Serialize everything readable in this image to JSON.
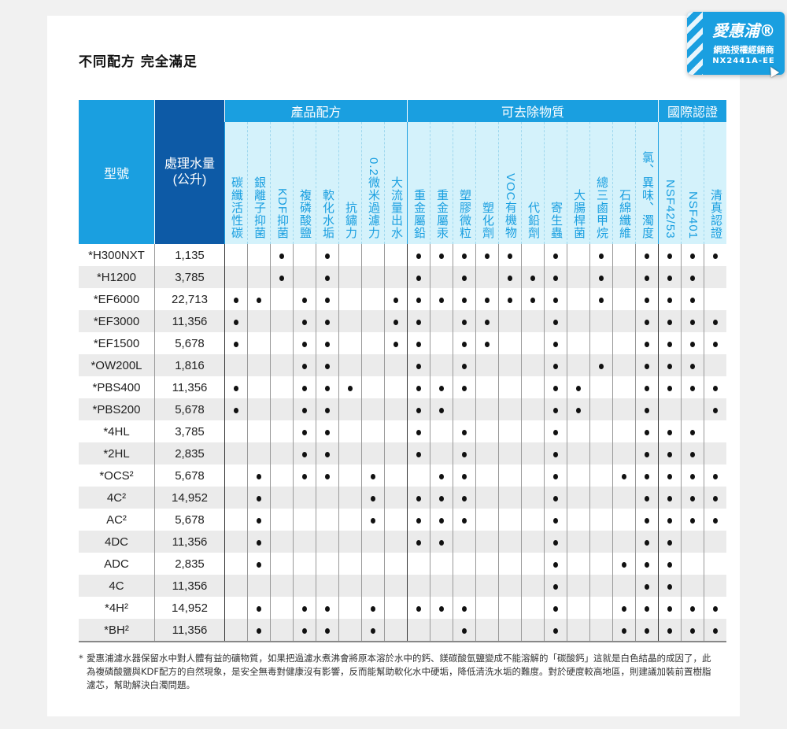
{
  "title": "不同配方 完全滿足",
  "badge": {
    "logo": "愛惠浦®",
    "line1": "網路授權經銷商",
    "line2": "NX2441A-EE"
  },
  "colors": {
    "model_header": "#1a9fe0",
    "volume_header": "#0d5aa6",
    "sub_header_bg": "#d4f2fb",
    "row_alt": "#ebebeb"
  },
  "table": {
    "model_header": "型號",
    "volume_header_1": "處理水量",
    "volume_header_2": "(公升)",
    "groups": [
      {
        "label": "產品配方",
        "span": 8
      },
      {
        "label": "可去除物質",
        "span": 11
      },
      {
        "label": "國際認證",
        "span": 3
      }
    ],
    "columns": [
      "碳纖活性碳",
      "銀離子抑菌",
      "KDF抑菌",
      "複磷酸鹽",
      "軟化水垢",
      "抗鏽力",
      "0.2微米過濾力",
      "大流量出水",
      "重金屬鉛",
      "重金屬汞",
      "塑膠微粒",
      "塑化劑",
      "VOC有機物",
      "代鉛劑",
      "寄生蟲",
      "大腸桿菌",
      "總三鹵甲烷",
      "石綿纖維",
      "氯、異味、濁度",
      "NSF42/53",
      "NSF401",
      "清真認證"
    ],
    "rows": [
      {
        "model": "*H300NXT",
        "volume": "1,135",
        "dots": [
          2,
          4,
          8,
          9,
          10,
          11,
          12,
          14,
          16,
          18,
          19,
          20,
          21
        ]
      },
      {
        "model": "*H1200",
        "volume": "3,785",
        "dots": [
          2,
          4,
          8,
          10,
          12,
          13,
          14,
          16,
          18,
          19,
          20
        ]
      },
      {
        "model": "*EF6000",
        "volume": "22,713",
        "dots": [
          0,
          1,
          3,
          4,
          7,
          8,
          9,
          10,
          11,
          12,
          13,
          14,
          16,
          18,
          19,
          20
        ]
      },
      {
        "model": "*EF3000",
        "volume": "11,356",
        "dots": [
          0,
          3,
          4,
          7,
          8,
          10,
          11,
          14,
          18,
          19,
          20,
          21
        ]
      },
      {
        "model": "*EF1500",
        "volume": "5,678",
        "dots": [
          0,
          3,
          4,
          7,
          8,
          10,
          11,
          14,
          18,
          19,
          20,
          21
        ]
      },
      {
        "model": "*OW200L",
        "volume": "1,816",
        "dots": [
          3,
          4,
          8,
          10,
          14,
          16,
          18,
          19,
          20
        ]
      },
      {
        "model": "*PBS400",
        "volume": "11,356",
        "dots": [
          0,
          3,
          4,
          5,
          8,
          9,
          10,
          14,
          15,
          18,
          19,
          20,
          21
        ]
      },
      {
        "model": "*PBS200",
        "volume": "5,678",
        "dots": [
          0,
          3,
          4,
          8,
          9,
          14,
          15,
          18,
          21
        ]
      },
      {
        "model": "*4HL",
        "volume": "3,785",
        "dots": [
          3,
          4,
          8,
          10,
          14,
          18,
          19,
          20
        ]
      },
      {
        "model": "*2HL",
        "volume": "2,835",
        "dots": [
          3,
          4,
          8,
          10,
          14,
          18,
          19,
          20
        ]
      },
      {
        "model": "*OCS²",
        "volume": "5,678",
        "dots": [
          1,
          3,
          4,
          6,
          9,
          10,
          14,
          17,
          18,
          19,
          20,
          21
        ]
      },
      {
        "model": "4C²",
        "volume": "14,952",
        "dots": [
          1,
          6,
          8,
          9,
          10,
          14,
          18,
          19,
          20,
          21
        ]
      },
      {
        "model": "AC²",
        "volume": "5,678",
        "dots": [
          1,
          6,
          8,
          9,
          10,
          14,
          18,
          19,
          20,
          21
        ]
      },
      {
        "model": "4DC",
        "volume": "11,356",
        "dots": [
          1,
          8,
          9,
          14,
          18,
          19
        ]
      },
      {
        "model": "ADC",
        "volume": "2,835",
        "dots": [
          1,
          14,
          17,
          18,
          19
        ]
      },
      {
        "model": "4C",
        "volume": "11,356",
        "dots": [
          14,
          18,
          19
        ]
      },
      {
        "model": "*4H²",
        "volume": "14,952",
        "dots": [
          1,
          3,
          4,
          6,
          8,
          9,
          10,
          14,
          17,
          18,
          19,
          20,
          21
        ]
      },
      {
        "model": "*BH²",
        "volume": "11,356",
        "dots": [
          1,
          3,
          4,
          6,
          10,
          14,
          17,
          18,
          19,
          20,
          21
        ]
      }
    ]
  },
  "footnote": {
    "marker": "*",
    "text": "愛惠浦濾水器保留水中對人體有益的礦物質，如果把過濾水煮沸會將原本溶於水中的鈣、鎂碳酸氫鹽變成不能溶解的「碳酸鈣」這就是白色結晶的成因了，此為複磷酸鹽與KDF配方的自然現象，是安全無毒對健康沒有影響，反而能幫助軟化水中硬垢，降低清洗水垢的難度。對於硬度較高地區，則建議加裝前置樹脂濾芯，幫助解決白濁問題。"
  }
}
